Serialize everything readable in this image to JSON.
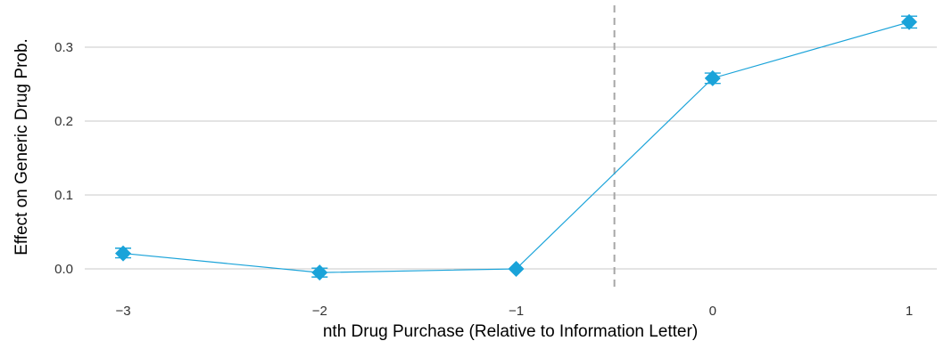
{
  "chart_data": {
    "type": "line",
    "xlabel": "nth Drug Purchase (Relative to Information Letter)",
    "ylabel": "Effect on Generic Drug Prob.",
    "x": [
      -3,
      -2,
      -1,
      0,
      1
    ],
    "x_tick_labels": [
      "−3",
      "−2",
      "−1",
      "0",
      "1"
    ],
    "xlim": [
      -3.3,
      1.3
    ],
    "ylim": [
      -0.03,
      0.36
    ],
    "y_ticks": [
      0.0,
      0.1,
      0.2,
      0.3
    ],
    "y_tick_labels": [
      "0.0",
      "0.1",
      "0.2",
      "0.3"
    ],
    "grid": "horizontal",
    "reference_line": {
      "x": -0.5,
      "style": "dashed",
      "color": "#a6a6a6"
    },
    "series": [
      {
        "color": "#1aa3d9",
        "marker": "diamond",
        "values": [
          0.021,
          -0.005,
          0.0,
          0.258,
          0.334
        ],
        "error_low": [
          0.015,
          -0.011,
          0.0,
          0.251,
          0.326
        ],
        "error_high": [
          0.028,
          0.001,
          0.0,
          0.265,
          0.342
        ]
      }
    ]
  }
}
